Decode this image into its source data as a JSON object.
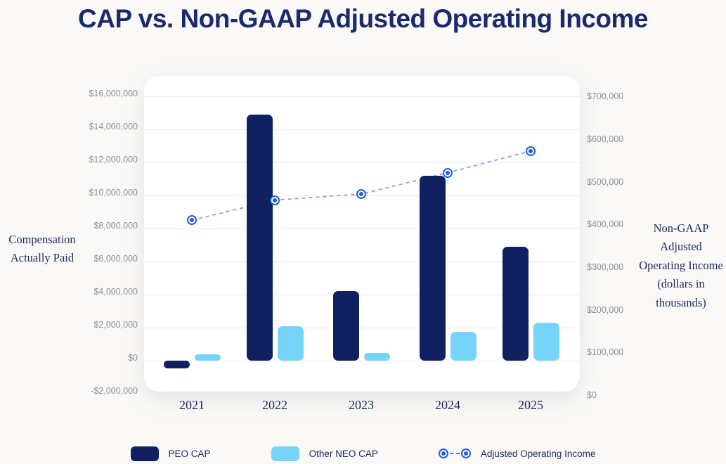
{
  "title": "CAP vs. Non-GAAP Adjusted Operating Income",
  "left_axis_title_lines": [
    "Compensation",
    "Actually Paid"
  ],
  "right_axis_title_lines": [
    "Non-GAAP",
    "Adjusted",
    "Operating Income",
    "(dollars in",
    "thousands)"
  ],
  "colors": {
    "title_text": "#1a2a6c",
    "serif_text": "#1c2a5e",
    "tick_text": "#8f8f8f",
    "peo_bar": "#0f2161",
    "neo_bar": "#76d4f8",
    "line": "#1d5ce0",
    "line_dash": "#7b9bee",
    "gridline": "#ececec",
    "card_bg": "#ffffff",
    "page_bg": "#faf9f7"
  },
  "legend": {
    "peo_label": "PEO CAP",
    "neo_label": "Other NEO CAP",
    "aoi_label": "Adjusted Operating Income"
  },
  "chart_data": {
    "type": "bar",
    "subtype": "grouped bars with overlaid dashed line on secondary axis",
    "title": "CAP vs. Non-GAAP Adjusted Operating Income",
    "categories": [
      "2021",
      "2022",
      "2023",
      "2024",
      "2025"
    ],
    "series": [
      {
        "name": "PEO CAP",
        "type": "bar",
        "axis": "left",
        "color": "#0f2161",
        "values": [
          -450000,
          14900000,
          4200000,
          11200000,
          6900000
        ]
      },
      {
        "name": "Other NEO CAP",
        "type": "bar",
        "axis": "left",
        "color": "#76d4f8",
        "values": [
          400000,
          2100000,
          450000,
          1750000,
          2300000
        ]
      },
      {
        "name": "Adjusted Operating Income",
        "type": "line",
        "axis": "right",
        "color": "#1d5ce0",
        "style": "dashed with ring markers",
        "values": [
          410000,
          457000,
          471000,
          521000,
          572000
        ]
      }
    ],
    "left_axis": {
      "label": "Compensation Actually Paid",
      "min": -2000000,
      "max": 16000000,
      "step": 2000000,
      "tick_labels": [
        "$16,000,000",
        "$14,000,000",
        "$12,000,000",
        "$10,000,000",
        "$8,000,000",
        "$6,000,000",
        "$4,000,000",
        "$2,000,000",
        "$0",
        "-$2,000,000"
      ]
    },
    "right_axis": {
      "label": "Non-GAAP Adjusted Operating Income (dollars in thousands)",
      "min": 0,
      "max": 700000,
      "step": 100000,
      "tick_labels": [
        "$700,000",
        "$600,000",
        "$500,000",
        "$400,000",
        "$300,000",
        "$200,000",
        "$100,000",
        "$0"
      ]
    },
    "grid": "horizontal gridlines on left-axis ticks",
    "legend_position": "bottom center"
  }
}
